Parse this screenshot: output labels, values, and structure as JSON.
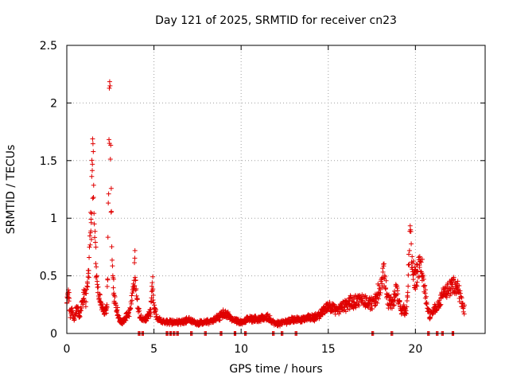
{
  "chart_data": {
    "type": "scatter",
    "title": "Day 121 of 2025, SRMTID for receiver cn23",
    "xlabel": "GPS time / hours",
    "ylabel": "SRMTID / TECUs",
    "xlim": [
      0,
      24
    ],
    "ylim": [
      0,
      2.5
    ],
    "xticks": [
      "0",
      "5",
      "10",
      "15",
      "20"
    ],
    "xtick_values": [
      0,
      5,
      10,
      15,
      20
    ],
    "yticks": [
      "0",
      "0.5",
      "1",
      "1.5",
      "2",
      "2.5"
    ],
    "ytick_values": [
      0,
      0.5,
      1,
      1.5,
      2,
      2.5
    ],
    "grid": true,
    "marker": "+",
    "color": "#e00000",
    "series": [
      {
        "name": "SRMTID",
        "profile": [
          [
            0.0,
            0.25
          ],
          [
            0.1,
            0.35
          ],
          [
            0.2,
            0.15
          ],
          [
            0.3,
            0.22
          ],
          [
            0.4,
            0.12
          ],
          [
            0.5,
            0.18
          ],
          [
            0.6,
            0.25
          ],
          [
            0.7,
            0.14
          ],
          [
            0.8,
            0.2
          ],
          [
            0.9,
            0.28
          ],
          [
            1.0,
            0.35
          ],
          [
            1.1,
            0.3
          ],
          [
            1.2,
            0.45
          ],
          [
            1.3,
            0.7
          ],
          [
            1.4,
            1.0
          ],
          [
            1.45,
            1.5
          ],
          [
            1.5,
            1.45
          ],
          [
            1.55,
            1.2
          ],
          [
            1.6,
            0.9
          ],
          [
            1.65,
            0.7
          ],
          [
            1.7,
            0.5
          ],
          [
            1.8,
            0.35
          ],
          [
            1.9,
            0.28
          ],
          [
            2.0,
            0.22
          ],
          [
            2.1,
            0.2
          ],
          [
            2.2,
            0.18
          ],
          [
            2.3,
            0.25
          ],
          [
            2.35,
            0.6
          ],
          [
            2.4,
            1.4
          ],
          [
            2.45,
            2.2
          ],
          [
            2.5,
            1.8
          ],
          [
            2.55,
            1.0
          ],
          [
            2.6,
            0.6
          ],
          [
            2.7,
            0.35
          ],
          [
            2.8,
            0.22
          ],
          [
            2.9,
            0.18
          ],
          [
            3.0,
            0.12
          ],
          [
            3.2,
            0.1
          ],
          [
            3.4,
            0.15
          ],
          [
            3.6,
            0.18
          ],
          [
            3.8,
            0.35
          ],
          [
            3.9,
            0.6
          ],
          [
            4.0,
            0.3
          ],
          [
            4.2,
            0.15
          ],
          [
            4.5,
            0.12
          ],
          [
            4.8,
            0.18
          ],
          [
            4.9,
            0.45
          ],
          [
            5.0,
            0.22
          ],
          [
            5.2,
            0.12
          ],
          [
            5.5,
            0.1
          ],
          [
            6.0,
            0.1
          ],
          [
            6.5,
            0.1
          ],
          [
            7.0,
            0.12
          ],
          [
            7.5,
            0.09
          ],
          [
            8.0,
            0.1
          ],
          [
            8.5,
            0.12
          ],
          [
            9.0,
            0.18
          ],
          [
            9.5,
            0.12
          ],
          [
            10.0,
            0.1
          ],
          [
            10.5,
            0.13
          ],
          [
            11.0,
            0.12
          ],
          [
            11.5,
            0.14
          ],
          [
            12.0,
            0.08
          ],
          [
            12.5,
            0.1
          ],
          [
            13.0,
            0.12
          ],
          [
            13.5,
            0.12
          ],
          [
            14.0,
            0.14
          ],
          [
            14.5,
            0.15
          ],
          [
            15.0,
            0.25
          ],
          [
            15.5,
            0.2
          ],
          [
            16.0,
            0.25
          ],
          [
            16.5,
            0.28
          ],
          [
            17.0,
            0.3
          ],
          [
            17.5,
            0.25
          ],
          [
            18.0,
            0.4
          ],
          [
            18.2,
            0.55
          ],
          [
            18.4,
            0.3
          ],
          [
            18.7,
            0.25
          ],
          [
            18.9,
            0.4
          ],
          [
            19.0,
            0.3
          ],
          [
            19.2,
            0.2
          ],
          [
            19.5,
            0.2
          ],
          [
            19.7,
            0.9
          ],
          [
            19.8,
            0.55
          ],
          [
            20.0,
            0.45
          ],
          [
            20.2,
            0.58
          ],
          [
            20.4,
            0.55
          ],
          [
            20.6,
            0.3
          ],
          [
            20.8,
            0.15
          ],
          [
            21.0,
            0.18
          ],
          [
            21.3,
            0.25
          ],
          [
            21.6,
            0.33
          ],
          [
            21.9,
            0.38
          ],
          [
            22.2,
            0.42
          ],
          [
            22.5,
            0.35
          ],
          [
            22.8,
            0.2
          ]
        ],
        "dropouts": [
          4.1,
          4.3,
          5.7,
          5.9,
          6.1,
          6.3,
          7.1,
          7.9,
          8.8,
          9.6,
          10.2,
          11.8,
          12.3,
          13.1,
          17.5,
          18.6,
          20.7,
          21.2,
          21.5,
          22.1
        ]
      }
    ]
  }
}
